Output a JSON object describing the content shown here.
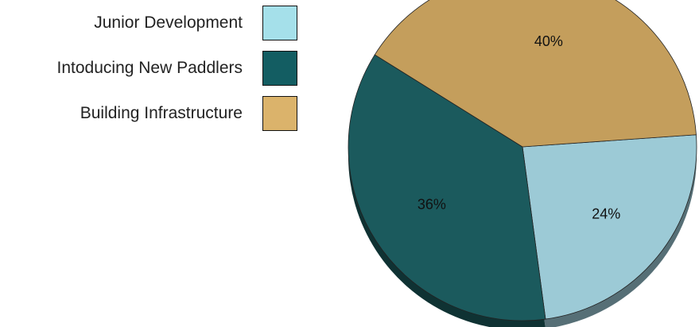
{
  "chart_data": {
    "type": "pie",
    "title": "",
    "categories": [
      "Junior Development",
      "Intoducing New Paddlers",
      "Building Infrastructure"
    ],
    "values": [
      24,
      36,
      40
    ],
    "labels": [
      "24%",
      "36%",
      "40%"
    ],
    "colors": [
      "#9ccad6",
      "#1b5a5d",
      "#c49e5c"
    ],
    "legend_colors": [
      "#a5e0ea",
      "#135d62",
      "#dbb36b"
    ],
    "legend": "left",
    "style": "3d"
  }
}
